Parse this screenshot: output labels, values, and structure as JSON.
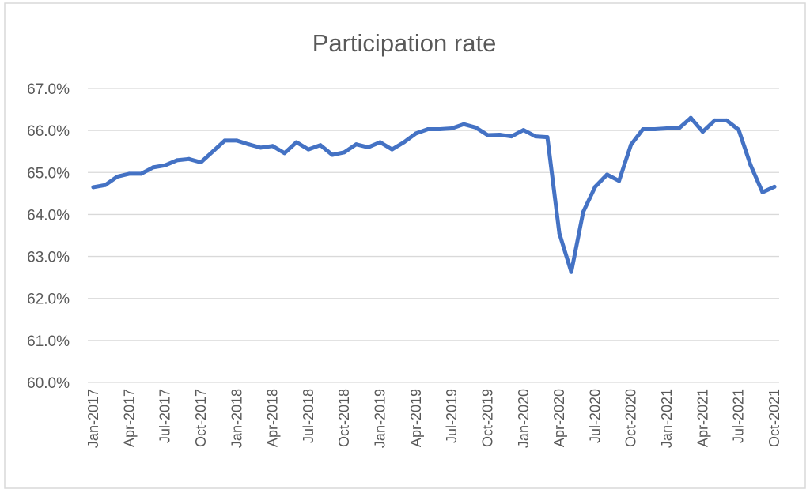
{
  "chart_data": {
    "type": "line",
    "title": "Participation rate",
    "xlabel": "",
    "ylabel": "",
    "ylim": [
      60.0,
      67.0
    ],
    "y_ticks": [
      "60.0%",
      "61.0%",
      "62.0%",
      "63.0%",
      "64.0%",
      "65.0%",
      "66.0%",
      "67.0%"
    ],
    "x_tick_labels": [
      "Jan-2017",
      "Apr-2017",
      "Jul-2017",
      "Oct-2017",
      "Jan-2018",
      "Apr-2018",
      "Jul-2018",
      "Oct-2018",
      "Jan-2019",
      "Apr-2019",
      "Jul-2019",
      "Oct-2019",
      "Jan-2020",
      "Apr-2020",
      "Jul-2020",
      "Oct-2020",
      "Jan-2021",
      "Apr-2021",
      "Jul-2021",
      "Oct-2021"
    ],
    "grid": true,
    "legend": false,
    "series_color": "#4472c4",
    "series": [
      {
        "x": [
          "Jan-2017",
          "Feb-2017",
          "Mar-2017",
          "Apr-2017",
          "May-2017",
          "Jun-2017",
          "Jul-2017",
          "Aug-2017",
          "Sep-2017",
          "Oct-2017",
          "Nov-2017",
          "Dec-2017",
          "Jan-2018",
          "Feb-2018",
          "Mar-2018",
          "Apr-2018",
          "May-2018",
          "Jun-2018",
          "Jul-2018",
          "Aug-2018",
          "Sep-2018",
          "Oct-2018",
          "Nov-2018",
          "Dec-2018",
          "Jan-2019",
          "Feb-2019",
          "Mar-2019",
          "Apr-2019",
          "May-2019",
          "Jun-2019",
          "Jul-2019",
          "Aug-2019",
          "Sep-2019",
          "Oct-2019",
          "Nov-2019",
          "Dec-2019",
          "Jan-2020",
          "Feb-2020",
          "Mar-2020",
          "Apr-2020",
          "May-2020",
          "Jun-2020",
          "Jul-2020",
          "Aug-2020",
          "Sep-2020",
          "Oct-2020",
          "Nov-2020",
          "Dec-2020",
          "Jan-2021",
          "Feb-2021",
          "Mar-2021",
          "Apr-2021",
          "May-2021",
          "Jun-2021",
          "Jul-2021",
          "Aug-2021",
          "Sep-2021",
          "Oct-2021"
        ],
        "values": [
          64.65,
          64.7,
          64.9,
          64.97,
          64.97,
          65.12,
          65.17,
          65.29,
          65.32,
          65.24,
          65.5,
          65.76,
          65.76,
          65.67,
          65.59,
          65.63,
          65.46,
          65.72,
          65.55,
          65.65,
          65.42,
          65.48,
          65.67,
          65.6,
          65.72,
          65.55,
          65.72,
          65.93,
          66.03,
          66.03,
          66.05,
          66.15,
          66.07,
          65.89,
          65.9,
          65.86,
          66.01,
          65.86,
          65.84,
          63.55,
          62.63,
          64.06,
          64.66,
          64.95,
          64.8,
          65.66,
          66.03,
          66.03,
          66.05,
          66.05,
          66.3,
          65.97,
          66.24,
          66.24,
          66.02,
          65.18,
          64.53,
          64.66
        ]
      }
    ]
  }
}
